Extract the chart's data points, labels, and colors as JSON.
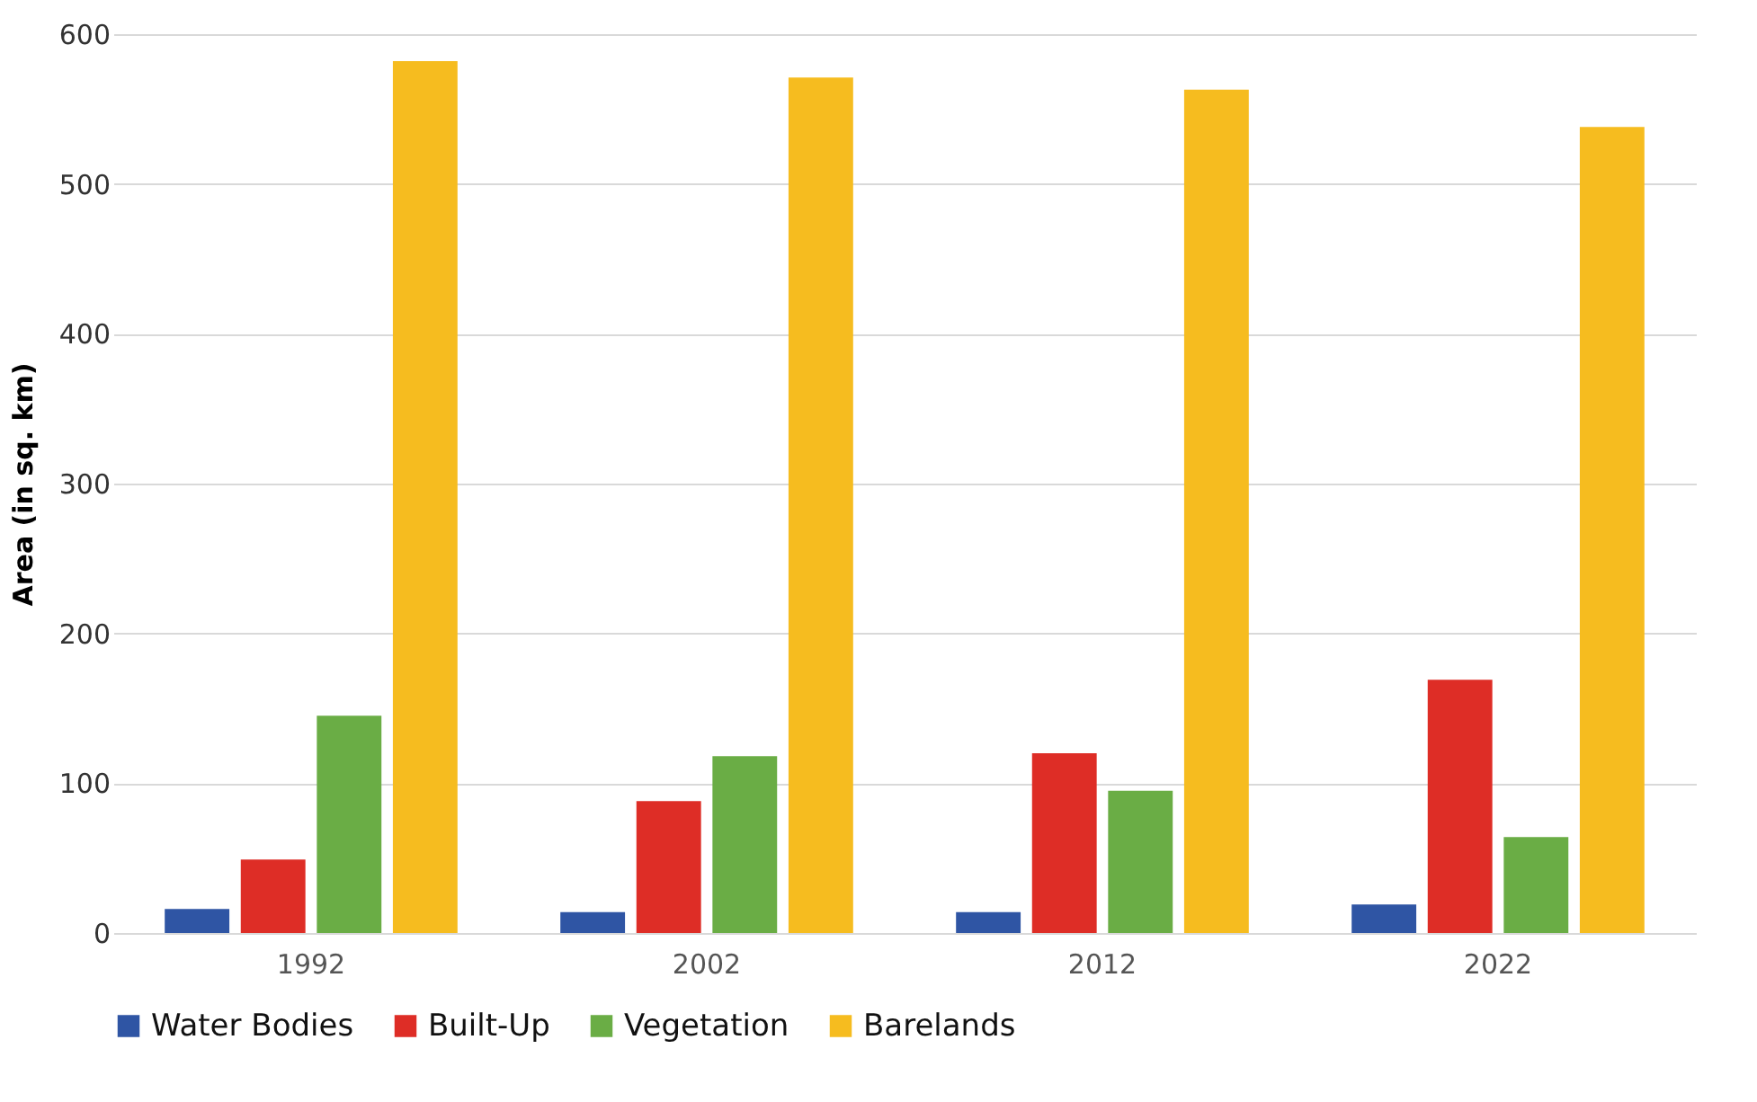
{
  "chart_data": {
    "type": "bar",
    "ylabel": "Area (in sq. km)",
    "categories": [
      "1992",
      "2002",
      "2012",
      "2022"
    ],
    "series": [
      {
        "name": "Water Bodies",
        "color": "#2f55a4",
        "values": [
          16,
          14,
          14,
          19
        ]
      },
      {
        "name": "Built-Up",
        "color": "#de2d26",
        "values": [
          49,
          88,
          120,
          169
        ]
      },
      {
        "name": "Vegetation",
        "color": "#6aad45",
        "values": [
          145,
          118,
          95,
          64
        ]
      },
      {
        "name": "Barelands",
        "color": "#f6bc1f",
        "values": [
          582,
          571,
          563,
          538
        ]
      }
    ],
    "ylim": [
      0,
      600
    ],
    "yticks": [
      0,
      100,
      200,
      300,
      400,
      500,
      600
    ],
    "grid": "y",
    "legend": "bottom"
  }
}
